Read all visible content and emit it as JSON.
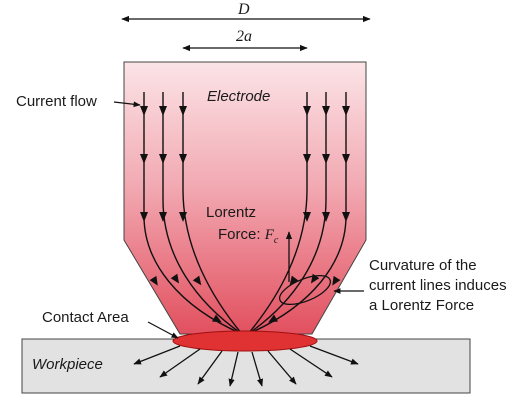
{
  "dimensions": {
    "diameter_symbol": "D",
    "contact_width_symbol": "2a"
  },
  "labels": {
    "current_flow": "Current flow",
    "electrode": "Electrode",
    "lorentz_force_line1": "Lorentz",
    "lorentz_force_line2": "Force:",
    "force_symbol": "F",
    "force_subscript": "c",
    "curvature_line1": "Curvature of the",
    "curvature_line2": "current lines induces",
    "curvature_line3": "a Lorentz Force",
    "contact_area": "Contact Area",
    "workpiece": "Workpiece"
  },
  "colors": {
    "electrode_top": "#e04c5c",
    "electrode_bottom": "#fbe3e6",
    "contact_area": "#e03232",
    "workpiece": "#e2e2e2",
    "line": "#111111"
  }
}
